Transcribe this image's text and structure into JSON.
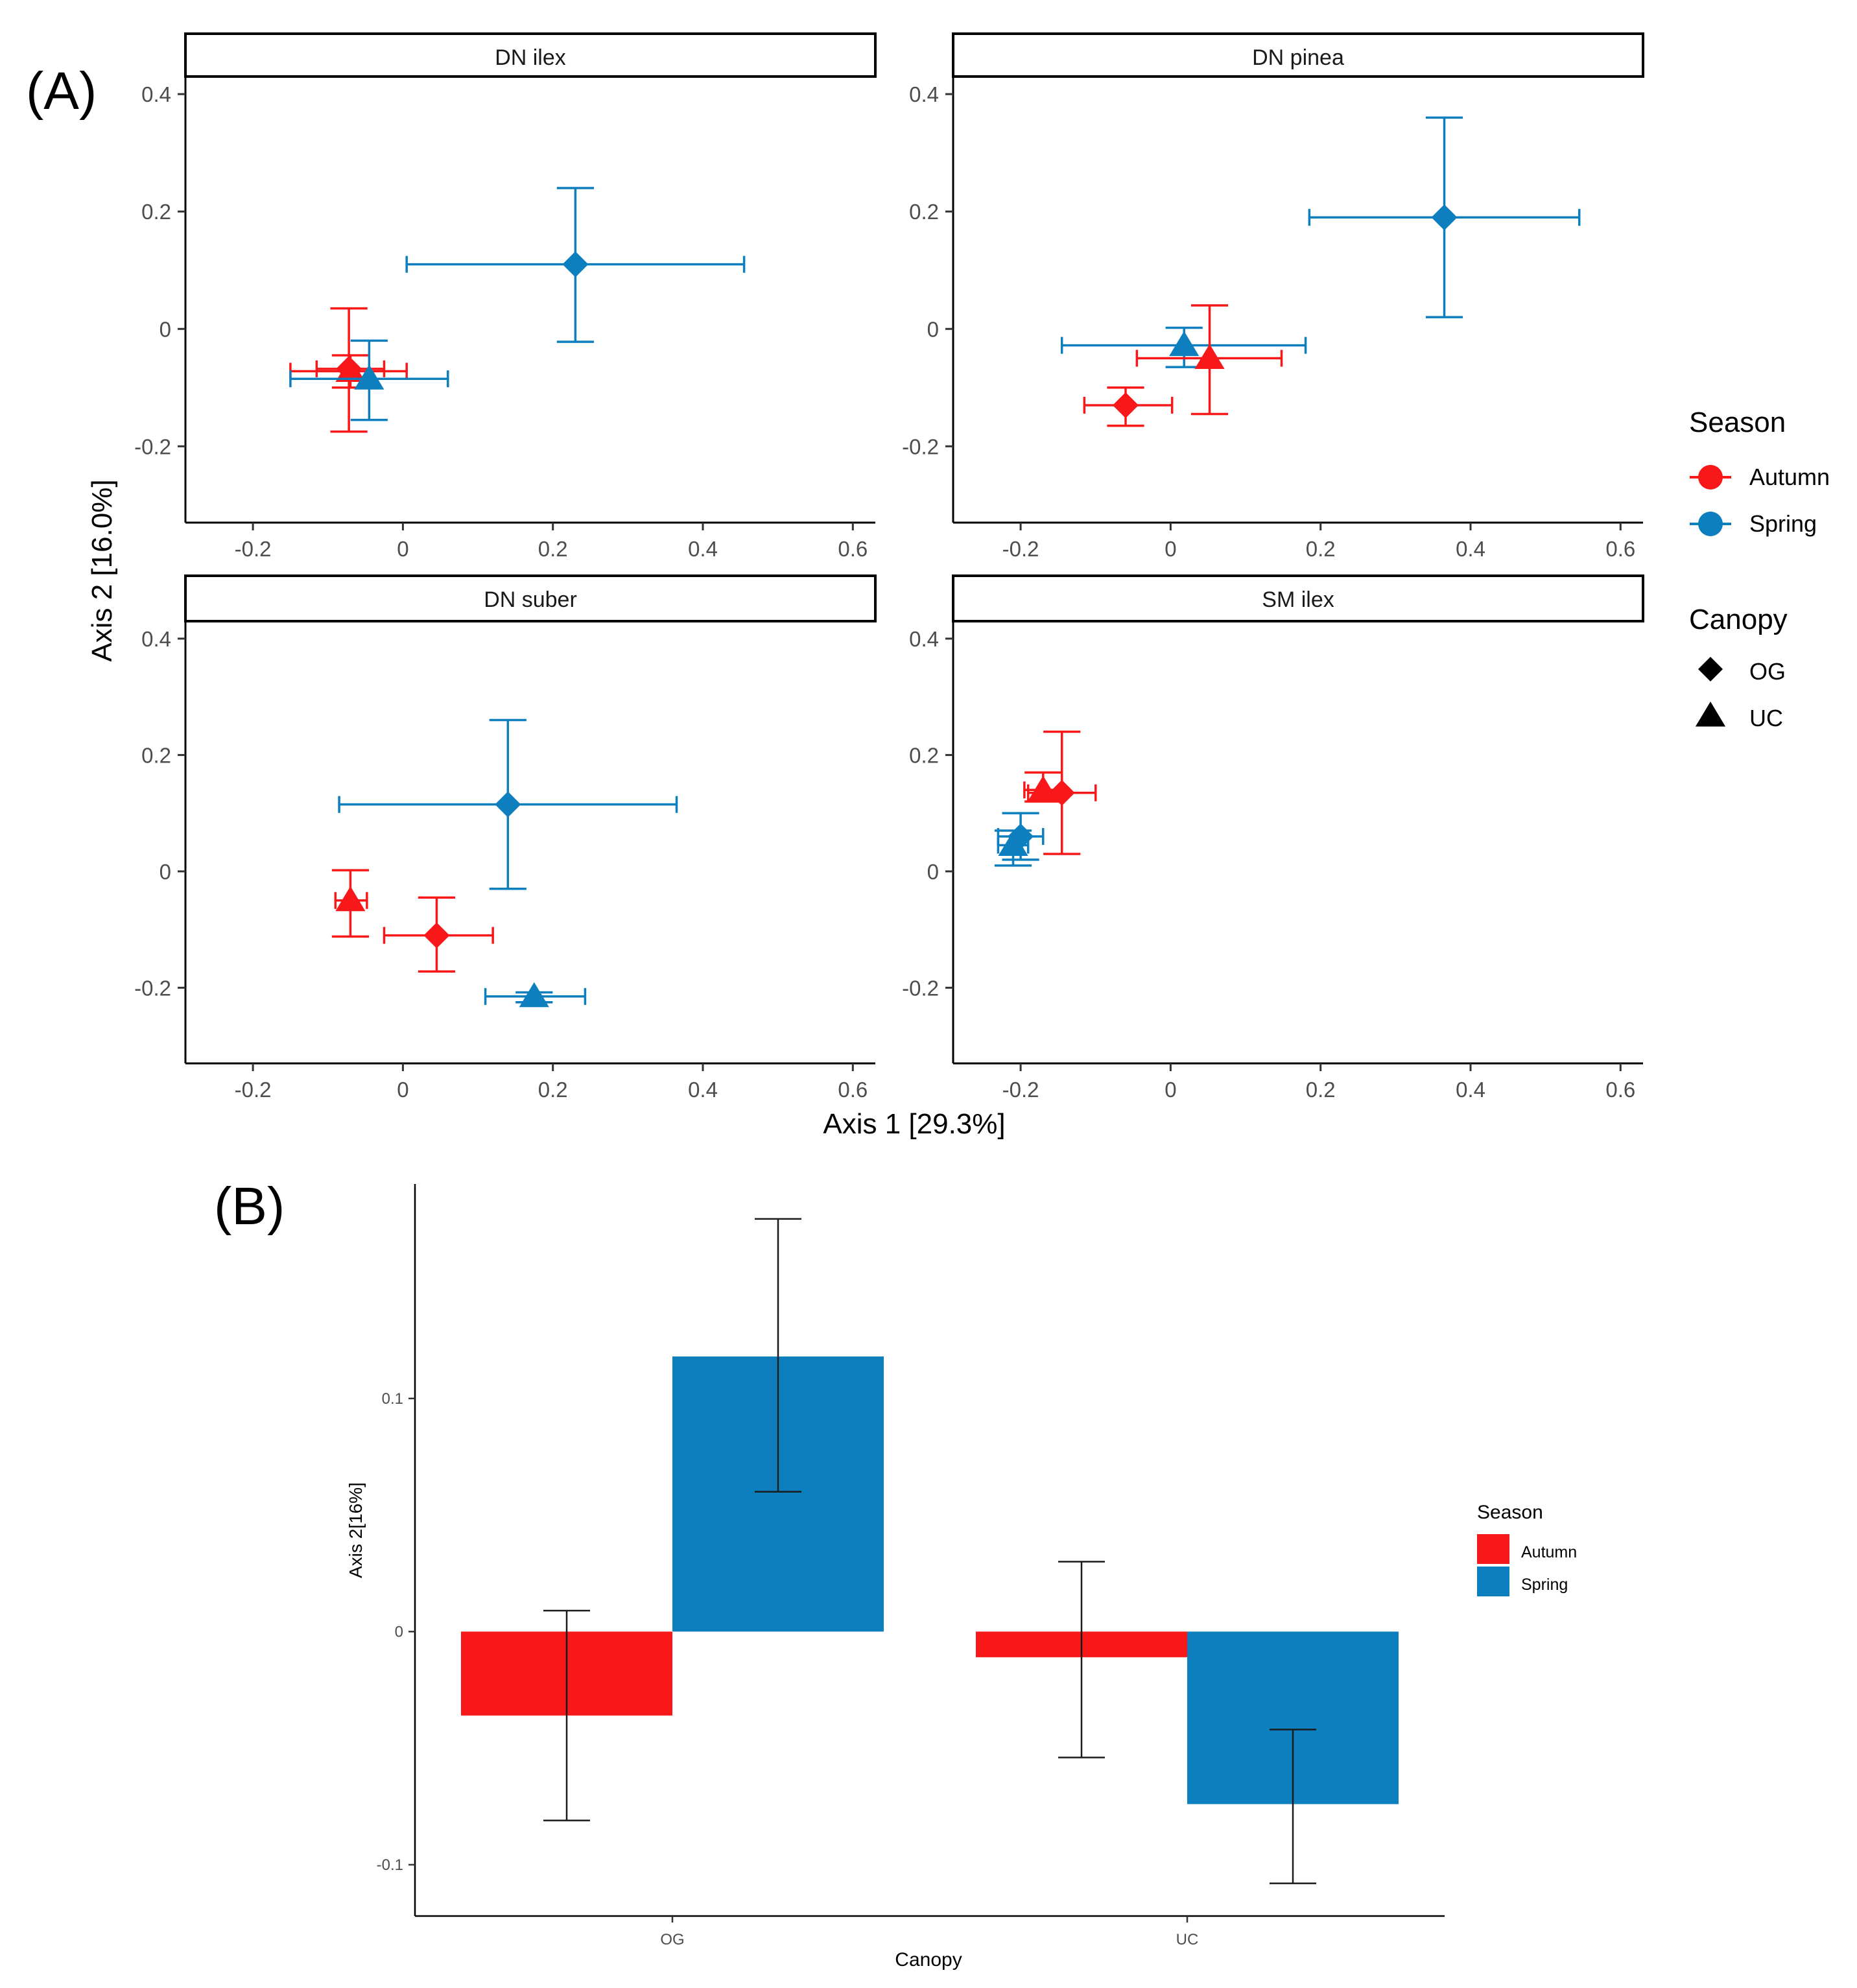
{
  "panel_a_label": "(A)",
  "panel_b_label": "(B)",
  "colors": {
    "Autumn": "#f8181a",
    "Spring": "#0d7fbf",
    "axis": "#000000",
    "tick_text": "#4d4d4d"
  },
  "chart_data": [
    {
      "type": "scatter",
      "subtype": "faceted scatter with x and y error bars",
      "xlabel": "Axis 1 [29.3%]",
      "ylabel": "Axis 2 [16.0%]",
      "xlim": [
        -0.29,
        0.63
      ],
      "ylim": [
        -0.33,
        0.43
      ],
      "xticks": [
        -0.2,
        0,
        0.2,
        0.4,
        0.6
      ],
      "xtick_labels": [
        "-0.2",
        "0",
        "0.2",
        "0.4",
        "0.6"
      ],
      "yticks": [
        -0.2,
        0,
        0.2,
        0.4
      ],
      "ytick_labels": [
        "-0.2",
        "0",
        "0.2",
        "0.4"
      ],
      "grid": false,
      "legend_position": "right",
      "legend": {
        "season_title": "Season",
        "season": [
          {
            "name": "Autumn"
          },
          {
            "name": "Spring"
          }
        ],
        "canopy_title": "Canopy",
        "canopy": [
          {
            "name": "OG",
            "shape": "diamond"
          },
          {
            "name": "UC",
            "shape": "triangle"
          }
        ]
      },
      "facets": [
        {
          "name": "DN ilex",
          "points": [
            {
              "season": "Autumn",
              "canopy": "OG",
              "x": -0.072,
              "y": -0.068,
              "xmin": -0.115,
              "xmax": -0.025,
              "ymin": -0.175,
              "ymax": 0.035
            },
            {
              "season": "Autumn",
              "canopy": "UC",
              "x": -0.07,
              "y": -0.072,
              "xmin": -0.15,
              "xmax": 0.005,
              "ymin": -0.1,
              "ymax": -0.045
            },
            {
              "season": "Spring",
              "canopy": "UC",
              "x": -0.045,
              "y": -0.085,
              "xmin": -0.15,
              "xmax": 0.06,
              "ymin": -0.155,
              "ymax": -0.02
            },
            {
              "season": "Spring",
              "canopy": "OG",
              "x": 0.23,
              "y": 0.11,
              "xmin": 0.005,
              "xmax": 0.455,
              "ymin": -0.022,
              "ymax": 0.24
            }
          ]
        },
        {
          "name": "DN pinea",
          "points": [
            {
              "season": "Spring",
              "canopy": "OG",
              "x": 0.365,
              "y": 0.19,
              "xmin": 0.185,
              "xmax": 0.545,
              "ymin": 0.02,
              "ymax": 0.36
            },
            {
              "season": "Spring",
              "canopy": "UC",
              "x": 0.018,
              "y": -0.028,
              "xmin": -0.145,
              "xmax": 0.18,
              "ymin": -0.065,
              "ymax": 0.002
            },
            {
              "season": "Autumn",
              "canopy": "UC",
              "x": 0.052,
              "y": -0.05,
              "xmin": -0.045,
              "xmax": 0.148,
              "ymin": -0.145,
              "ymax": 0.04
            },
            {
              "season": "Autumn",
              "canopy": "OG",
              "x": -0.06,
              "y": -0.13,
              "xmin": -0.115,
              "xmax": 0.002,
              "ymin": -0.165,
              "ymax": -0.1
            }
          ]
        },
        {
          "name": "DN suber",
          "points": [
            {
              "season": "Spring",
              "canopy": "OG",
              "x": 0.14,
              "y": 0.115,
              "xmin": -0.085,
              "xmax": 0.365,
              "ymin": -0.03,
              "ymax": 0.26
            },
            {
              "season": "Autumn",
              "canopy": "UC",
              "x": -0.07,
              "y": -0.05,
              "xmin": -0.09,
              "xmax": -0.048,
              "ymin": -0.112,
              "ymax": 0.002
            },
            {
              "season": "Autumn",
              "canopy": "OG",
              "x": 0.045,
              "y": -0.11,
              "xmin": -0.025,
              "xmax": 0.12,
              "ymin": -0.172,
              "ymax": -0.045
            },
            {
              "season": "Spring",
              "canopy": "UC",
              "x": 0.175,
              "y": -0.215,
              "xmin": 0.11,
              "xmax": 0.243,
              "ymin": -0.225,
              "ymax": -0.208
            }
          ]
        },
        {
          "name": "SM ilex",
          "points": [
            {
              "season": "Autumn",
              "canopy": "UC",
              "x": -0.17,
              "y": 0.14,
              "xmin": -0.195,
              "xmax": -0.145,
              "ymin": 0.12,
              "ymax": 0.17
            },
            {
              "season": "Autumn",
              "canopy": "OG",
              "x": -0.145,
              "y": 0.135,
              "xmin": -0.19,
              "xmax": -0.1,
              "ymin": 0.03,
              "ymax": 0.24
            },
            {
              "season": "Spring",
              "canopy": "UC",
              "x": -0.21,
              "y": 0.045,
              "xmin": -0.23,
              "xmax": -0.19,
              "ymin": 0.01,
              "ymax": 0.07
            },
            {
              "season": "Spring",
              "canopy": "OG",
              "x": -0.2,
              "y": 0.06,
              "xmin": -0.23,
              "xmax": -0.17,
              "ymin": 0.02,
              "ymax": 0.1
            }
          ]
        }
      ]
    },
    {
      "type": "bar",
      "subtype": "grouped bar with error bars",
      "categories": [
        "OG",
        "UC"
      ],
      "xlabel": "Canopy",
      "ylabel": "Axis 2[16%]",
      "ylim": [
        -0.122,
        0.192
      ],
      "yticks": [
        -0.1,
        0,
        0.1
      ],
      "ytick_labels": [
        "-0.1",
        "0",
        "0.1"
      ],
      "grid": false,
      "legend_position": "right",
      "legend_title": "Season",
      "series": [
        {
          "name": "Autumn",
          "values": [
            -0.036,
            -0.011
          ],
          "err_low": [
            -0.081,
            -0.054
          ],
          "err_high": [
            0.009,
            0.03
          ]
        },
        {
          "name": "Spring",
          "values": [
            0.118,
            -0.074
          ],
          "err_low": [
            0.06,
            -0.108
          ],
          "err_high": [
            0.177,
            -0.042
          ]
        }
      ]
    }
  ]
}
